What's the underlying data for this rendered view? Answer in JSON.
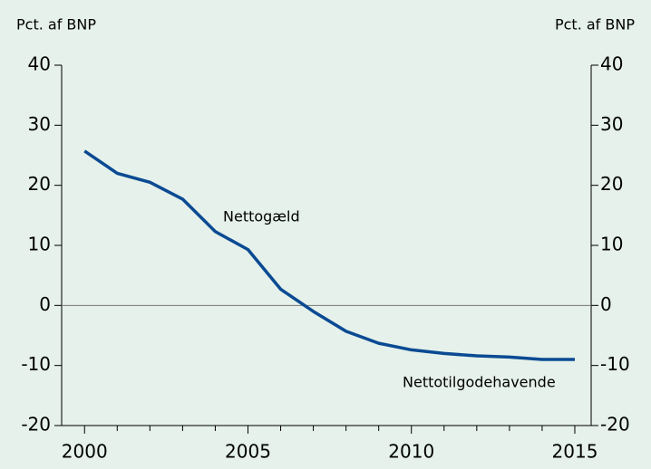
{
  "chart_data": {
    "type": "line",
    "ylabel_left": "Pct. af BNP",
    "ylabel_right": "Pct. af BNP",
    "x": [
      2000,
      2001,
      2002,
      2003,
      2004,
      2005,
      2006,
      2007,
      2008,
      2009,
      2010,
      2011,
      2012,
      2013,
      2014,
      2015
    ],
    "series": [
      {
        "name": "Nettogæld",
        "color": "#0b4a93",
        "values": [
          25.7,
          22,
          20.5,
          17.7,
          12.3,
          9.3,
          2.7,
          -1,
          -4.3,
          -6.3,
          -7.4,
          -8,
          -8.4,
          -8.6,
          -9,
          -9
        ]
      }
    ],
    "annotations": [
      "Nettogæld",
      "Nettotilgodehavende"
    ],
    "xlim": [
      1999.3,
      2015.5
    ],
    "xticks": [
      2000,
      2005,
      2010,
      2015
    ],
    "xminorticks": [
      2001,
      2002,
      2003,
      2004,
      2006,
      2007,
      2008,
      2009,
      2011,
      2012,
      2013,
      2014
    ],
    "ylim": [
      -20,
      40
    ],
    "yticks": [
      -20,
      -10,
      0,
      10,
      20,
      30,
      40
    ],
    "y2lim": [
      -20,
      40
    ],
    "y2ticks": [
      -20,
      -10,
      0,
      10,
      20,
      30,
      40
    ]
  }
}
